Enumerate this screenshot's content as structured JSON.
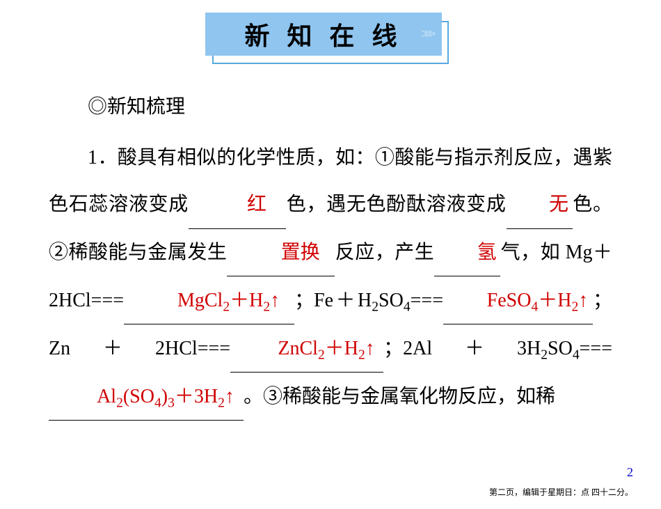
{
  "banner": {
    "text": "新 知 在 线",
    "bg_color": "#8fc5ef",
    "shadow_border": "#5aa8de",
    "arrow_color": "#c5e2f6"
  },
  "section_title": "◎新知梳理",
  "body": {
    "lead": "1．酸具有相似的化学性质，如：①酸能与指示剂反应，遇紫色石蕊溶液变成",
    "ans1": "红",
    "t2": "色，遇无色酚酞溶液变成",
    "ans2": "无",
    "t3": "色。②稀酸能与金属发生",
    "ans3": "置换",
    "t4": "反应，产生",
    "ans4": "氢",
    "t5": "气，如 ",
    "eq1": "Mg＋2HCl===",
    "eqans1_a": "MgCl",
    "eqans1_b": "＋H",
    "eqans1_c": "↑",
    "t6": "；",
    "eq2a": "Fe＋H",
    "eq2b": "SO",
    "eq2c": "===",
    "eqans2_a": "FeSO",
    "eqans2_b": "＋H",
    "eqans2_c": "↑",
    "t7": "；",
    "eq3": "Zn＋2HCl===",
    "eqans3_a": "ZnCl",
    "eqans3_b": "＋H",
    "eqans3_c": "↑",
    "t8": "；",
    "eq4a": "2Al＋3H",
    "eq4b": "SO",
    "eq4c": "===",
    "eqans4_a": "Al",
    "eqans4_b": "(SO",
    "eqans4_c": ")",
    "eqans4_d": "＋3H",
    "eqans4_e": "↑",
    "t9": "。③稀酸能与金属氧化物反应，如稀"
  },
  "blank_widths": {
    "w1": "140px",
    "w2": "95px",
    "w3": "155px",
    "w4": "95px",
    "w5": "245px",
    "w6": "215px",
    "w7": "220px",
    "w8": "280px"
  },
  "page_num": "2",
  "footer": "第二页，编辑于星期日：点 四十二分。"
}
